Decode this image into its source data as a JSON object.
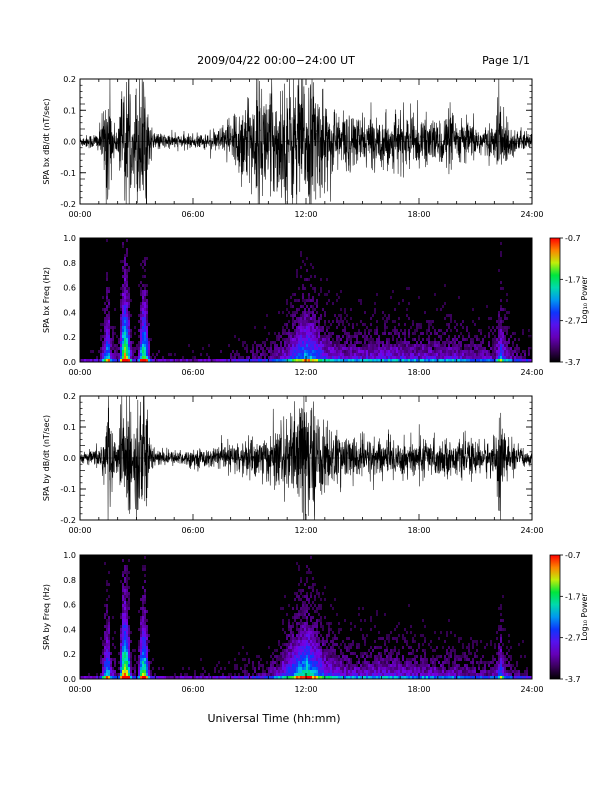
{
  "header": {
    "title": "2009/04/22  00:00−24:00 UT",
    "page": "Page 1/1"
  },
  "footer": {
    "xlabel": "Universal Time (hh:mm)"
  },
  "chart_data": [
    {
      "type": "line",
      "ylabel": "SPA bx dB/dt (nT/sec)",
      "ylim": [
        -0.2,
        0.2
      ],
      "yticks": [
        "-0.2",
        "-0.1",
        "0.0",
        "0.1",
        "0.2"
      ],
      "yticks_values": [
        -0.2,
        -0.1,
        0.0,
        0.1,
        0.2
      ],
      "xlim": [
        0,
        24
      ],
      "xticks": [
        "00:00",
        "06:00",
        "12:00",
        "18:00",
        "24:00"
      ],
      "xticks_values": [
        0,
        6,
        12,
        18,
        24
      ],
      "series": [
        {
          "x_hours": [
            0,
            0.5,
            1,
            1.3,
            1.45,
            1.55,
            1.7,
            2,
            2.2,
            2.35,
            2.5,
            2.65,
            2.8,
            3,
            3.2,
            3.35,
            3.5,
            3.7,
            4,
            5,
            6,
            7,
            7.5,
            8,
            8.5,
            9,
            9.5,
            10,
            10.5,
            11,
            11.5,
            12,
            12.5,
            13,
            13.5,
            14,
            15,
            16,
            17,
            18,
            19,
            19.5,
            20,
            21,
            22,
            22.3,
            22.5,
            23,
            24
          ],
          "amplitude": [
            0.015,
            0.02,
            0.03,
            0.1,
            0.2,
            0.2,
            0.06,
            0.04,
            0.2,
            0.2,
            0.2,
            0.2,
            0.05,
            0.2,
            0.2,
            0.2,
            0.2,
            0.05,
            0.025,
            0.02,
            0.02,
            0.025,
            0.04,
            0.08,
            0.12,
            0.15,
            0.17,
            0.16,
            0.16,
            0.18,
            0.2,
            0.2,
            0.18,
            0.13,
            0.1,
            0.09,
            0.07,
            0.07,
            0.08,
            0.07,
            0.06,
            0.09,
            0.07,
            0.05,
            0.04,
            0.2,
            0.08,
            0.04,
            0.02
          ]
        }
      ]
    },
    {
      "type": "heatmap",
      "ylabel": "SPA bx Freq (Hz)",
      "ylim": [
        0.0,
        1.0
      ],
      "yticks": [
        "0.0",
        "0.2",
        "0.4",
        "0.6",
        "0.8",
        "1.0"
      ],
      "yticks_values": [
        0,
        0.2,
        0.4,
        0.6,
        0.8,
        1.0
      ],
      "xlim": [
        0,
        24
      ],
      "xticks": [
        "00:00",
        "06:00",
        "12:00",
        "18:00",
        "24:00"
      ],
      "xticks_values": [
        0,
        6,
        12,
        18,
        24
      ],
      "colorbar": {
        "label": "Log₁₀ Power",
        "range": [
          -3.7,
          -0.7
        ],
        "ticks": [
          "-0.7",
          "-1.7",
          "-2.7",
          "-3.7"
        ],
        "ticks_values": [
          -0.7,
          -1.7,
          -2.7,
          -3.7
        ]
      },
      "x_hours": [
        0,
        0.5,
        1,
        1.3,
        1.45,
        1.6,
        2,
        2.2,
        2.35,
        2.5,
        2.7,
        3,
        3.2,
        3.35,
        3.5,
        3.7,
        4,
        5,
        6,
        7,
        8,
        9,
        10,
        10.5,
        11,
        11.5,
        12,
        12.5,
        13,
        14,
        15,
        16,
        17,
        18,
        19,
        20,
        21,
        22,
        22.3,
        22.5,
        23,
        24
      ],
      "intensity": [
        0.05,
        0.05,
        0.1,
        0.5,
        0.7,
        0.3,
        0.15,
        0.8,
        0.95,
        0.75,
        0.2,
        0.15,
        0.65,
        0.85,
        0.6,
        0.15,
        0.08,
        0.06,
        0.06,
        0.08,
        0.1,
        0.15,
        0.2,
        0.25,
        0.35,
        0.5,
        0.6,
        0.5,
        0.35,
        0.3,
        0.3,
        0.32,
        0.32,
        0.3,
        0.3,
        0.3,
        0.25,
        0.25,
        0.55,
        0.35,
        0.2,
        0.15
      ]
    },
    {
      "type": "line",
      "ylabel": "SPA by dB/dt (nT/sec)",
      "ylim": [
        -0.2,
        0.2
      ],
      "yticks": [
        "-0.2",
        "-0.1",
        "0.0",
        "0.1",
        "0.2"
      ],
      "yticks_values": [
        -0.2,
        -0.1,
        0.0,
        0.1,
        0.2
      ],
      "xlim": [
        0,
        24
      ],
      "xticks": [
        "00:00",
        "06:00",
        "12:00",
        "18:00",
        "24:00"
      ],
      "xticks_values": [
        0,
        6,
        12,
        18,
        24
      ],
      "series": [
        {
          "x_hours": [
            0,
            0.5,
            1,
            1.3,
            1.45,
            1.55,
            1.7,
            2,
            2.2,
            2.35,
            2.5,
            2.65,
            2.8,
            3,
            3.2,
            3.35,
            3.5,
            3.7,
            4,
            5,
            6,
            7,
            8,
            9,
            10,
            10.5,
            11,
            11.5,
            11.8,
            12,
            12.2,
            12.5,
            13,
            13.5,
            14,
            15,
            16,
            17,
            18,
            19,
            20,
            21,
            22,
            22.3,
            22.5,
            23,
            24
          ],
          "amplitude": [
            0.015,
            0.02,
            0.03,
            0.1,
            0.2,
            0.2,
            0.06,
            0.04,
            0.2,
            0.2,
            0.2,
            0.2,
            0.05,
            0.2,
            0.2,
            0.2,
            0.2,
            0.05,
            0.025,
            0.02,
            0.025,
            0.03,
            0.04,
            0.06,
            0.07,
            0.09,
            0.11,
            0.15,
            0.2,
            0.2,
            0.2,
            0.14,
            0.1,
            0.08,
            0.07,
            0.06,
            0.06,
            0.06,
            0.06,
            0.05,
            0.05,
            0.05,
            0.05,
            0.2,
            0.07,
            0.04,
            0.02
          ]
        }
      ]
    },
    {
      "type": "heatmap",
      "ylabel": "SPA by Freq (Hz)",
      "ylim": [
        0.0,
        1.0
      ],
      "yticks": [
        "0.0",
        "0.2",
        "0.4",
        "0.6",
        "0.8",
        "1.0"
      ],
      "yticks_values": [
        0,
        0.2,
        0.4,
        0.6,
        0.8,
        1.0
      ],
      "xlim": [
        0,
        24
      ],
      "xticks": [
        "00:00",
        "06:00",
        "12:00",
        "18:00",
        "24:00"
      ],
      "xticks_values": [
        0,
        6,
        12,
        18,
        24
      ],
      "colorbar": {
        "label": "Log₁₀ Power",
        "range": [
          -3.7,
          -0.7
        ],
        "ticks": [
          "-0.7",
          "-1.7",
          "-2.7",
          "-3.7"
        ],
        "ticks_values": [
          -0.7,
          -1.7,
          -2.7,
          -3.7
        ]
      },
      "x_hours": [
        0,
        0.5,
        1,
        1.3,
        1.45,
        1.6,
        2,
        2.2,
        2.35,
        2.5,
        2.7,
        3,
        3.2,
        3.35,
        3.5,
        3.7,
        4,
        5,
        6,
        7,
        8,
        9,
        10,
        10.5,
        11,
        11.5,
        12,
        12.5,
        13,
        14,
        15,
        16,
        17,
        18,
        19,
        20,
        21,
        22,
        22.3,
        22.5,
        23,
        24
      ],
      "intensity": [
        0.05,
        0.05,
        0.1,
        0.55,
        0.7,
        0.3,
        0.15,
        0.85,
        0.95,
        0.8,
        0.2,
        0.15,
        0.7,
        0.85,
        0.6,
        0.15,
        0.08,
        0.06,
        0.06,
        0.08,
        0.1,
        0.15,
        0.2,
        0.3,
        0.45,
        0.6,
        0.7,
        0.55,
        0.4,
        0.3,
        0.3,
        0.32,
        0.3,
        0.28,
        0.28,
        0.25,
        0.22,
        0.22,
        0.5,
        0.3,
        0.18,
        0.12
      ]
    }
  ]
}
